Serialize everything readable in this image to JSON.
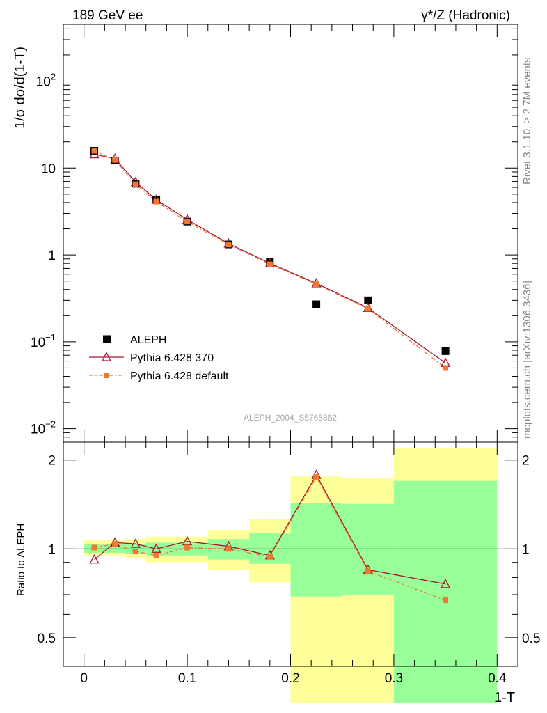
{
  "chart_data": [
    {
      "type": "scatter",
      "title_left": "189 GeV ee",
      "title_right": "γ*/Z (Hadronic)",
      "ylabel": "1/σ  dσ/d(1-T)",
      "watermark": "ALEPH_2004_S5765862",
      "side_text_top": "Rivet 3.1.10, ≥ 2.7M events",
      "side_text_bottom": "mcplots.cern.ch [arXiv:1306.3436]",
      "yscale": "log",
      "ylim": [
        0.007,
        450
      ],
      "xlim": [
        -0.02,
        0.42
      ],
      "y_ticks": [
        {
          "v": 0.01,
          "m": "10",
          "e": "−2"
        },
        {
          "v": 0.1,
          "m": "10",
          "e": "−1"
        },
        {
          "v": 1,
          "m": "1",
          "e": ""
        },
        {
          "v": 10,
          "m": "10",
          "e": ""
        },
        {
          "v": 100,
          "m": "10",
          "e": "2"
        }
      ],
      "legend": {
        "placement": "center-left",
        "entries": [
          "ALEPH",
          "Pythia 6.428 370",
          "Pythia 6.428 default"
        ]
      },
      "series": [
        {
          "name": "ALEPH",
          "color": "#000000",
          "marker": "square",
          "x": [
            0.01,
            0.03,
            0.05,
            0.07,
            0.1,
            0.14,
            0.18,
            0.225,
            0.275,
            0.35
          ],
          "values": [
            15.8,
            12.2,
            6.6,
            4.35,
            2.42,
            1.32,
            0.84,
            0.27,
            0.3,
            0.078
          ]
        },
        {
          "name": "Pythia 6.428 370",
          "color": "#a01830",
          "marker": "triangle-open",
          "x": [
            0.01,
            0.03,
            0.05,
            0.07,
            0.1,
            0.14,
            0.18,
            0.225,
            0.275,
            0.35
          ],
          "values": [
            14.4,
            12.8,
            6.9,
            4.3,
            2.55,
            1.35,
            0.8,
            0.47,
            0.245,
            0.057
          ]
        },
        {
          "name": "Pythia 6.428 default",
          "color": "#f07830",
          "marker": "square-small",
          "x": [
            0.01,
            0.03,
            0.05,
            0.07,
            0.1,
            0.14,
            0.18,
            0.225,
            0.275,
            0.35
          ],
          "values": [
            15.8,
            12.4,
            6.5,
            4.1,
            2.42,
            1.32,
            0.78,
            0.46,
            0.24,
            0.05
          ]
        }
      ]
    },
    {
      "type": "line",
      "ylabel": "Ratio to ALEPH",
      "xlabel": "1-T",
      "yscale": "log",
      "ylim": [
        0.4,
        2.3
      ],
      "xlim": [
        -0.02,
        0.42
      ],
      "y_ticks": [
        0.5,
        1,
        2
      ],
      "x_ticks": [
        0,
        0.1,
        0.2,
        0.3,
        0.4
      ],
      "x_tick_labels": [
        "0",
        "0.1",
        "0.2",
        "0.3",
        "0.4"
      ],
      "reference_line": 1,
      "bands": [
        {
          "x0": 0.0,
          "x1": 0.02,
          "y_lo": 0.95,
          "y_hi": 1.07,
          "g_lo": 0.97,
          "g_hi": 1.04
        },
        {
          "x0": 0.02,
          "x1": 0.04,
          "y_lo": 0.95,
          "y_hi": 1.07,
          "g_lo": 0.97,
          "g_hi": 1.04
        },
        {
          "x0": 0.04,
          "x1": 0.06,
          "y_lo": 0.93,
          "y_hi": 1.08,
          "g_lo": 0.96,
          "g_hi": 1.04
        },
        {
          "x0": 0.06,
          "x1": 0.08,
          "y_lo": 0.9,
          "y_hi": 1.1,
          "g_lo": 0.95,
          "g_hi": 1.05
        },
        {
          "x0": 0.08,
          "x1": 0.12,
          "y_lo": 0.9,
          "y_hi": 1.1,
          "g_lo": 0.95,
          "g_hi": 1.05
        },
        {
          "x0": 0.12,
          "x1": 0.16,
          "y_lo": 0.85,
          "y_hi": 1.16,
          "g_lo": 0.92,
          "g_hi": 1.08
        },
        {
          "x0": 0.16,
          "x1": 0.2,
          "y_lo": 0.77,
          "y_hi": 1.26,
          "g_lo": 0.89,
          "g_hi": 1.13
        },
        {
          "x0": 0.2,
          "x1": 0.25,
          "y_lo": 0.3,
          "y_hi": 1.76,
          "g_lo": 0.69,
          "g_hi": 1.43
        },
        {
          "x0": 0.25,
          "x1": 0.3,
          "y_lo": 0.3,
          "y_hi": 1.74,
          "g_lo": 0.7,
          "g_hi": 1.42
        },
        {
          "x0": 0.3,
          "x1": 0.4,
          "y_lo": 0.3,
          "y_hi": 2.2,
          "g_lo": 0.3,
          "g_hi": 1.7
        }
      ],
      "series": [
        {
          "name": "Pythia 6.428 370",
          "color": "#a01830",
          "marker": "triangle-open",
          "x": [
            0.01,
            0.03,
            0.05,
            0.07,
            0.1,
            0.14,
            0.18,
            0.225,
            0.275,
            0.35
          ],
          "values": [
            0.92,
            1.05,
            1.04,
            1.0,
            1.06,
            1.02,
            0.95,
            1.78,
            0.85,
            0.76
          ]
        },
        {
          "name": "Pythia 6.428 default",
          "color": "#f07830",
          "marker": "square-small",
          "x": [
            0.01,
            0.03,
            0.05,
            0.07,
            0.1,
            0.14,
            0.18,
            0.225,
            0.275,
            0.35
          ],
          "values": [
            1.01,
            1.04,
            0.98,
            0.95,
            1.01,
            1.0,
            0.94,
            1.75,
            0.84,
            0.67
          ]
        }
      ]
    }
  ]
}
